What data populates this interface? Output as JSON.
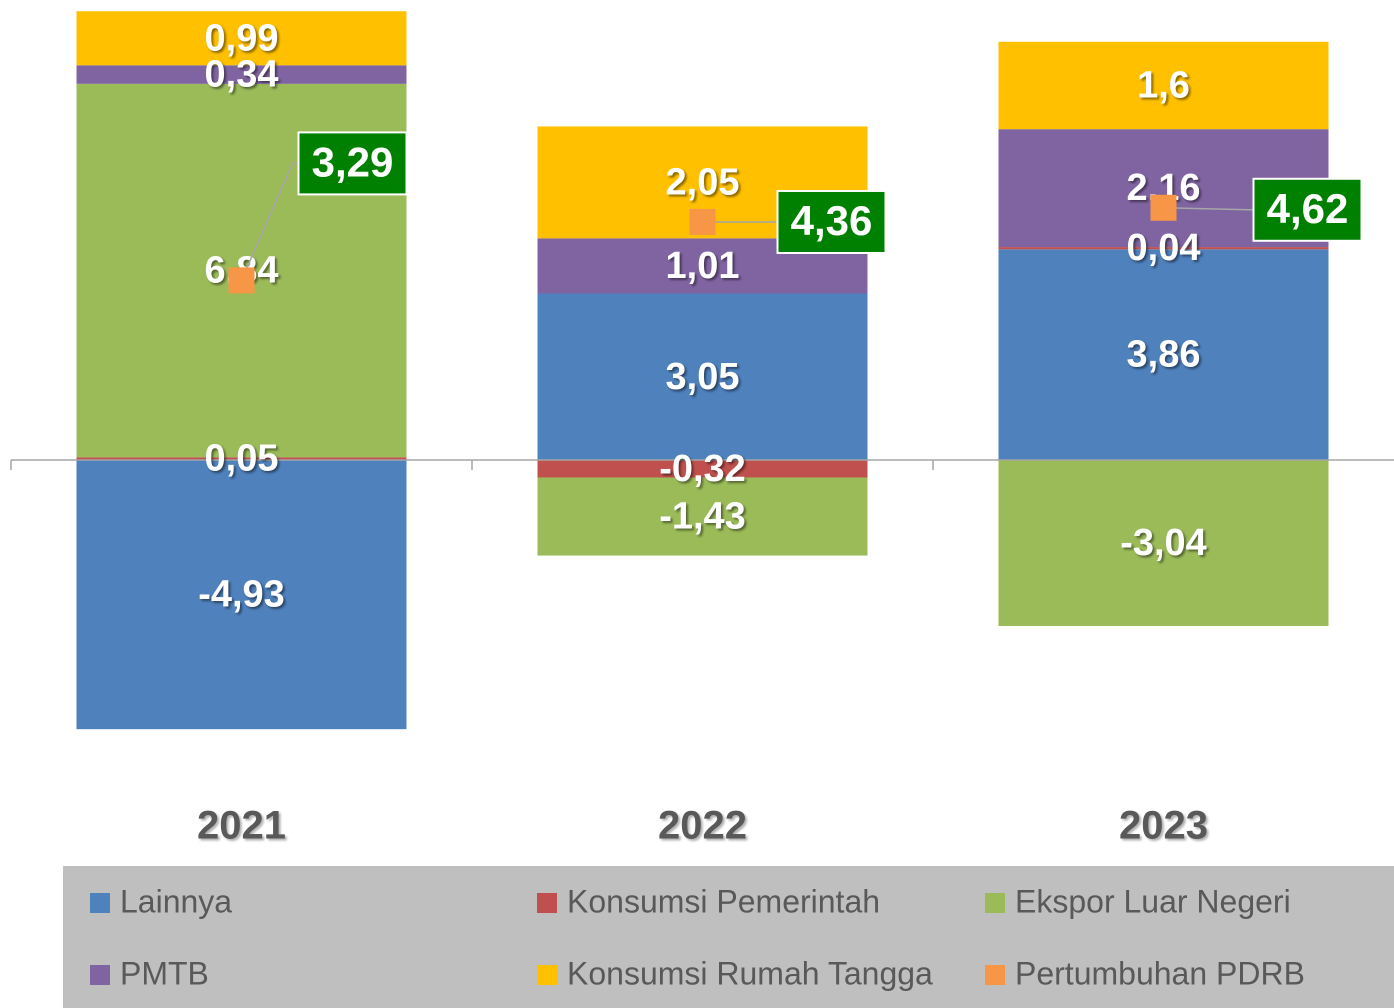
{
  "chart_data": {
    "type": "bar",
    "stacked": true,
    "categories": [
      "2021",
      "2022",
      "2023"
    ],
    "ylim": [
      -6,
      8.4
    ],
    "series": [
      {
        "name": "Lainnya",
        "color": "#4f81bd",
        "values": [
          -4.93,
          3.05,
          3.86
        ],
        "value_labels": [
          "-4,93",
          "3,05",
          "3,86"
        ]
      },
      {
        "name": "Konsumsi Pemerintah",
        "color": "#c0504d",
        "values": [
          0.05,
          -0.32,
          0.04
        ],
        "value_labels": [
          "0,05",
          "-0,32",
          "0,04"
        ]
      },
      {
        "name": "Ekspor Luar Negeri",
        "color": "#9bbb59",
        "values": [
          6.84,
          -1.43,
          -3.04
        ],
        "value_labels": [
          "6,84",
          "-1,43",
          "-3,04"
        ]
      },
      {
        "name": "PMTB",
        "color": "#8064a2",
        "values": [
          0.34,
          1.01,
          2.16
        ],
        "value_labels": [
          "0,34",
          "1,01",
          "2,16"
        ]
      },
      {
        "name": "Konsumsi Rumah Tangga",
        "color": "#ffc000",
        "values": [
          0.99,
          2.05,
          1.6
        ],
        "value_labels": [
          "0,99",
          "2,05",
          "1,6"
        ]
      },
      {
        "name": "Pertumbuhan PDRB",
        "color": "#f79646",
        "type": "marker",
        "label_color": "#008000",
        "values": [
          3.29,
          4.36,
          4.62
        ],
        "value_labels": [
          "3,29",
          "4,36",
          "4,62"
        ]
      }
    ],
    "legend": "bottom"
  }
}
